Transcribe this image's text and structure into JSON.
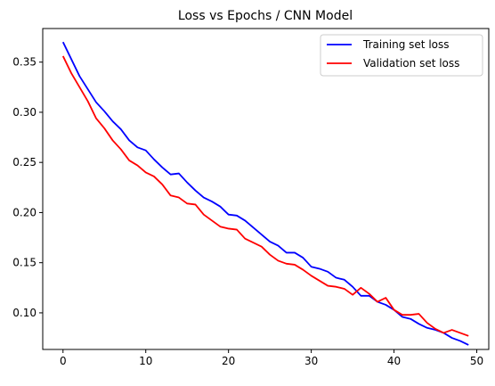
{
  "chart_data": {
    "type": "line",
    "title": "Loss vs Epochs / CNN Model",
    "xlabel": "",
    "ylabel": "",
    "xlim": [
      -2.45,
      51.45
    ],
    "ylim": [
      0.0635,
      0.3835
    ],
    "xticks": [
      0,
      10,
      20,
      30,
      40,
      50
    ],
    "yticks": [
      0.1,
      0.15,
      0.2,
      0.25,
      0.3,
      0.35
    ],
    "ytick_labels": [
      "0.10",
      "0.15",
      "0.20",
      "0.25",
      "0.30",
      "0.35"
    ],
    "xtick_labels": [
      "0",
      "10",
      "20",
      "30",
      "40",
      "50"
    ],
    "grid": false,
    "legend_position": "top-right",
    "x": [
      0,
      1,
      2,
      3,
      4,
      5,
      6,
      7,
      8,
      9,
      10,
      11,
      12,
      13,
      14,
      15,
      16,
      17,
      18,
      19,
      20,
      21,
      22,
      23,
      24,
      25,
      26,
      27,
      28,
      29,
      30,
      31,
      32,
      33,
      34,
      35,
      36,
      37,
      38,
      39,
      40,
      41,
      42,
      43,
      44,
      45,
      46,
      47,
      48,
      49
    ],
    "series": [
      {
        "name": "Training set loss",
        "color": "#0000ff",
        "values": [
          0.37,
          0.353,
          0.336,
          0.323,
          0.31,
          0.301,
          0.291,
          0.283,
          0.272,
          0.265,
          0.262,
          0.253,
          0.245,
          0.238,
          0.239,
          0.23,
          0.222,
          0.215,
          0.211,
          0.206,
          0.198,
          0.197,
          0.192,
          0.185,
          0.178,
          0.171,
          0.167,
          0.16,
          0.16,
          0.155,
          0.146,
          0.144,
          0.141,
          0.135,
          0.133,
          0.126,
          0.117,
          0.117,
          0.111,
          0.108,
          0.103,
          0.096,
          0.094,
          0.089,
          0.085,
          0.083,
          0.08,
          0.075,
          0.072,
          0.068
        ]
      },
      {
        "name": "Validation set loss",
        "color": "#ff0000",
        "values": [
          0.356,
          0.339,
          0.325,
          0.311,
          0.294,
          0.284,
          0.272,
          0.263,
          0.252,
          0.247,
          0.24,
          0.236,
          0.228,
          0.217,
          0.215,
          0.209,
          0.208,
          0.198,
          0.192,
          0.186,
          0.184,
          0.183,
          0.174,
          0.17,
          0.166,
          0.158,
          0.152,
          0.149,
          0.148,
          0.143,
          0.137,
          0.132,
          0.127,
          0.126,
          0.124,
          0.118,
          0.125,
          0.119,
          0.111,
          0.115,
          0.103,
          0.098,
          0.098,
          0.099,
          0.09,
          0.084,
          0.08,
          0.083,
          0.08,
          0.077
        ]
      }
    ]
  }
}
